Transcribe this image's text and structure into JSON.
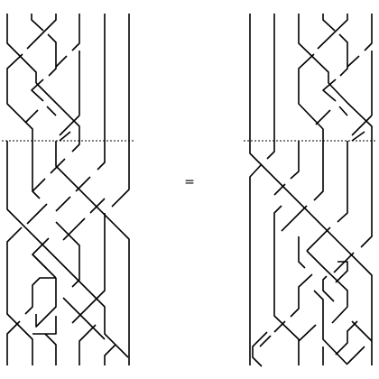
{
  "figure": {
    "equals_sign": "="
  },
  "colors": {
    "strand": "#000000",
    "background": "#ffffff"
  },
  "left_diagram": {
    "strand_count": 6,
    "has_dashed_divider": true
  },
  "right_diagram": {
    "strand_count": 6,
    "has_dashed_divider": true
  }
}
